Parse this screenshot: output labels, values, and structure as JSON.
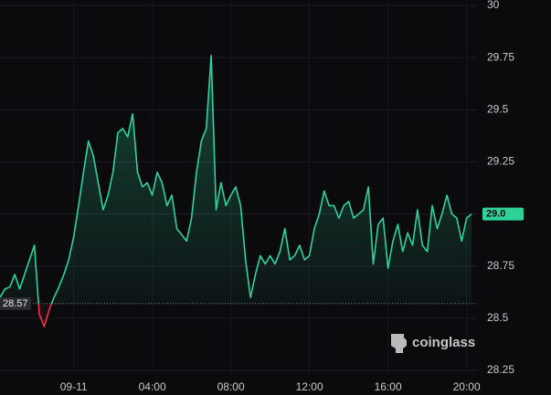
{
  "chart_data": {
    "type": "line",
    "values": [
      28.6,
      28.64,
      28.65,
      28.71,
      28.64,
      28.71,
      28.78,
      28.85,
      28.52,
      28.46,
      28.54,
      28.6,
      28.65,
      28.71,
      28.78,
      28.89,
      29.04,
      29.2,
      29.35,
      29.28,
      29.15,
      29.02,
      29.09,
      29.2,
      29.39,
      29.41,
      29.37,
      29.48,
      29.2,
      29.13,
      29.15,
      29.09,
      29.2,
      29.15,
      29.04,
      29.09,
      28.93,
      28.9,
      28.87,
      28.98,
      29.2,
      29.35,
      29.41,
      29.76,
      29.02,
      29.15,
      29.04,
      29.09,
      29.13,
      29.04,
      28.78,
      28.6,
      28.71,
      28.8,
      28.76,
      28.8,
      28.76,
      28.82,
      28.93,
      28.78,
      28.8,
      28.85,
      28.78,
      28.8,
      28.93,
      29.0,
      29.11,
      29.04,
      29.04,
      28.98,
      29.04,
      29.06,
      28.98,
      29.0,
      29.02,
      29.13,
      28.76,
      28.95,
      28.98,
      28.74,
      28.87,
      28.95,
      28.82,
      28.91,
      28.85,
      29.02,
      28.85,
      28.82,
      29.04,
      28.93,
      29.0,
      29.09,
      29.0,
      28.98,
      28.87,
      28.98,
      29.0
    ],
    "up_color": "#2fd39a",
    "down_color": "#f23645",
    "baseline": {
      "value": 28.57,
      "label": "28.57"
    },
    "price_tag": {
      "value": 29,
      "label": "29.0"
    },
    "ylim": [
      28.25,
      30
    ],
    "yticks": [
      28.25,
      28.5,
      28.75,
      29,
      29.25,
      29.5,
      29.75,
      30
    ],
    "xticks": [
      {
        "value": 15,
        "label": "09-11"
      },
      {
        "value": 31,
        "label": "04:00"
      },
      {
        "value": 47,
        "label": "08:00"
      },
      {
        "value": 63,
        "label": "12:00"
      },
      {
        "value": 79,
        "label": "16:00"
      },
      {
        "value": 95,
        "label": "20:00"
      }
    ],
    "grid": true,
    "watermark": "coinglass"
  }
}
